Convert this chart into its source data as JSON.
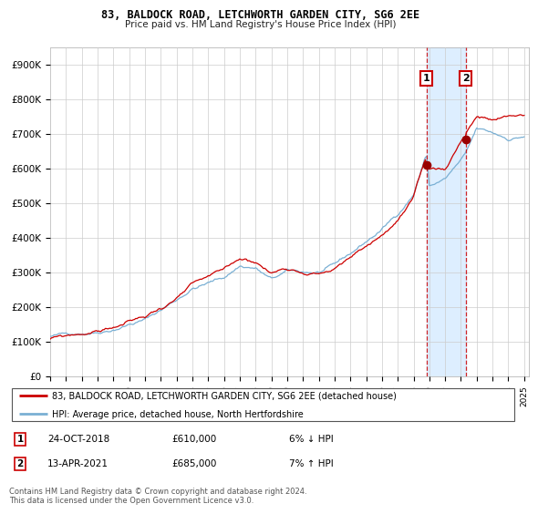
{
  "title1": "83, BALDOCK ROAD, LETCHWORTH GARDEN CITY, SG6 2EE",
  "title2": "Price paid vs. HM Land Registry's House Price Index (HPI)",
  "ylabel_ticks": [
    "£0",
    "£100K",
    "£200K",
    "£300K",
    "£400K",
    "£500K",
    "£600K",
    "£700K",
    "£800K",
    "£900K"
  ],
  "ytick_values": [
    0,
    100000,
    200000,
    300000,
    400000,
    500000,
    600000,
    700000,
    800000,
    900000
  ],
  "ylim": [
    0,
    950000
  ],
  "sale1_date": "24-OCT-2018",
  "sale1_price": 610000,
  "sale1_hpi_diff": "6% ↓ HPI",
  "sale1_label": "1",
  "sale2_date": "13-APR-2021",
  "sale2_price": 685000,
  "sale2_hpi_diff": "7% ↑ HPI",
  "sale2_label": "2",
  "legend_line1": "83, BALDOCK ROAD, LETCHWORTH GARDEN CITY, SG6 2EE (detached house)",
  "legend_line2": "HPI: Average price, detached house, North Hertfordshire",
  "footer": "Contains HM Land Registry data © Crown copyright and database right 2024.\nThis data is licensed under the Open Government Licence v3.0.",
  "line_color_red": "#cc0000",
  "line_color_blue": "#7ab0d4",
  "span_color": "#ddeeff",
  "sale1_x": 2018.82,
  "sale2_x": 2021.29,
  "marker_color": "#990000"
}
